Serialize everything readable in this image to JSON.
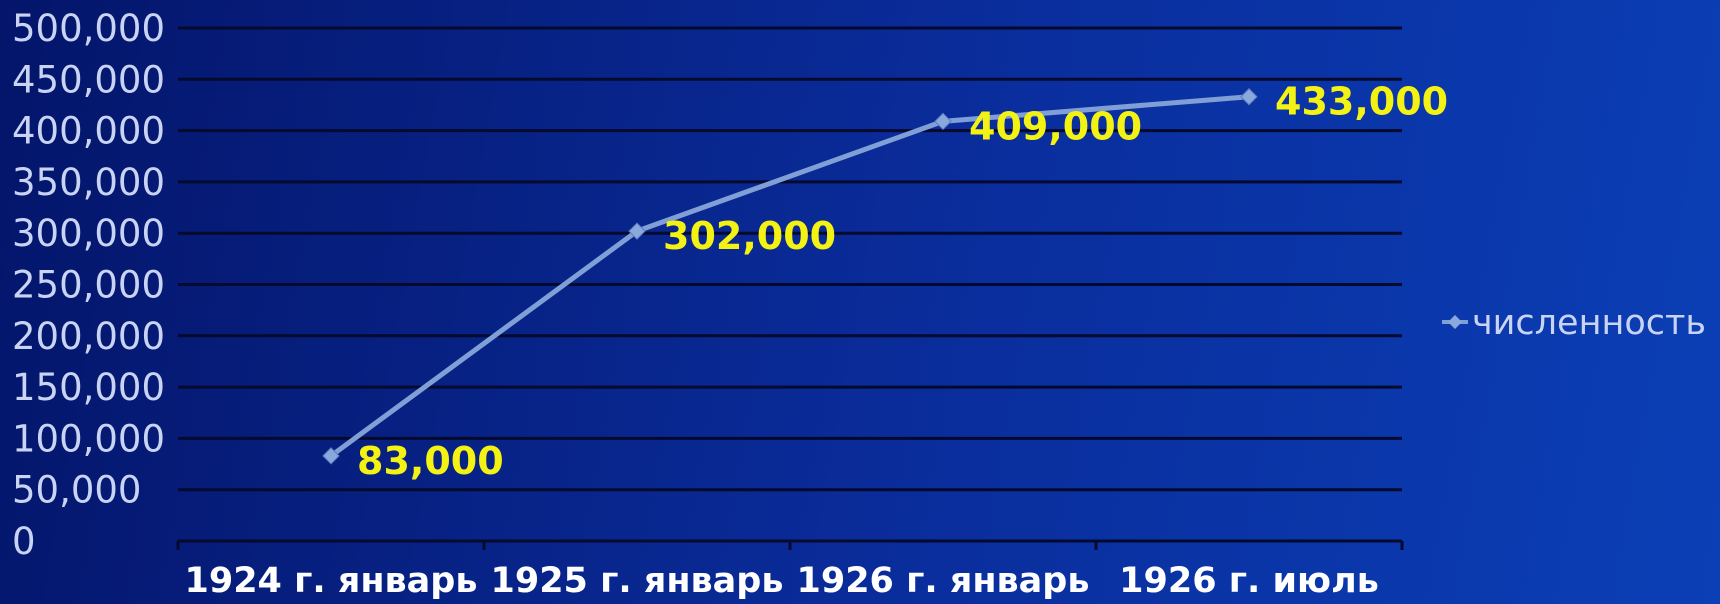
{
  "chart_data": {
    "type": "line",
    "categories": [
      "1924 г. январь",
      "1925 г. январь",
      "1926 г. январь",
      "1926 г. июль"
    ],
    "series": [
      {
        "name": "численность",
        "values": [
          83000,
          302000,
          409000,
          433000
        ]
      }
    ],
    "data_labels": [
      "83,000",
      "302,000",
      "409,000",
      "433,000"
    ],
    "y_ticks": [
      "0",
      "50,000",
      "100,000",
      "150,000",
      "200,000",
      "250,000",
      "300,000",
      "350,000",
      "400,000",
      "450,000",
      "500,000"
    ],
    "ylim": [
      0,
      500000
    ],
    "grid": true,
    "legend_position": "right",
    "title": "",
    "xlabel": "",
    "ylabel": "",
    "colors": {
      "line": "#7f9fd6",
      "marker": "#8aa8dc",
      "data_label": "#f4f212",
      "gridline": "#04092e",
      "tick_label": "#c9d4f5",
      "category_label": "#ffffff"
    }
  }
}
